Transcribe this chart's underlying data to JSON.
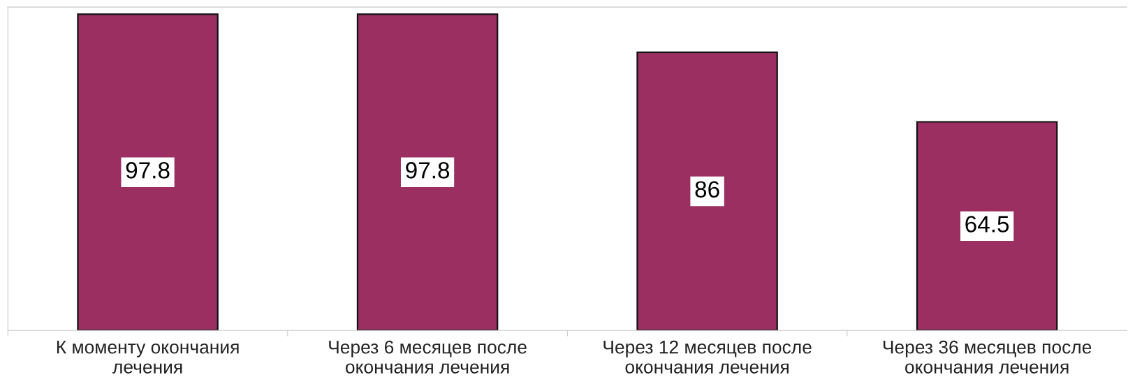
{
  "chart_data": {
    "type": "bar",
    "categories": [
      "К моменту окончания\nлечения",
      "Через 6 месяцев после\nокончания лечения",
      "Через 12 месяцев после\nокончания лечения",
      "Через 36 месяцев после\nокончания лечения"
    ],
    "values": [
      97.8,
      97.8,
      86,
      64.5
    ],
    "color": "#9b2f62",
    "ylim": [
      0,
      100
    ],
    "tick_labels": "x",
    "data_labels": true,
    "grid": false,
    "legend": false
  }
}
